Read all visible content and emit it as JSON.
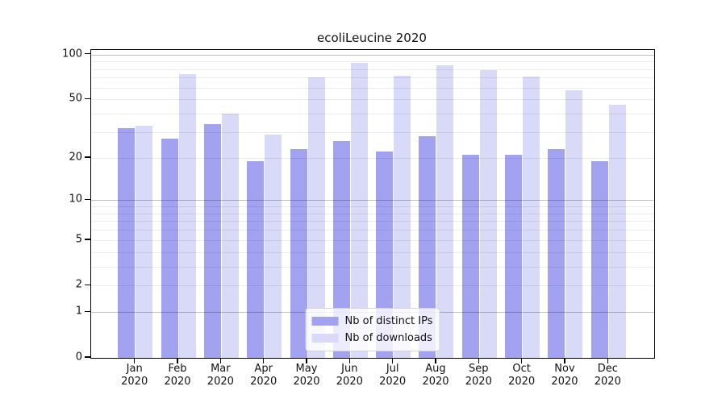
{
  "chart_data": {
    "type": "bar",
    "title": "ecoliLeucine 2020",
    "categories": [
      "Jan",
      "Feb",
      "Mar",
      "Apr",
      "May",
      "Jun",
      "Jul",
      "Aug",
      "Sep",
      "Oct",
      "Nov",
      "Dec"
    ],
    "year": "2020",
    "series": [
      {
        "name": "Nb of distinct IPs",
        "color": "#a2a2f0",
        "values": [
          32,
          27,
          34,
          19,
          23,
          26,
          22,
          28,
          21,
          21,
          23,
          19
        ]
      },
      {
        "name": "Nb of downloads",
        "color": "#d9d9f8",
        "values": [
          33,
          74,
          40,
          29,
          70,
          88,
          72,
          85,
          79,
          71,
          58,
          46
        ]
      }
    ],
    "xlabel": "",
    "ylabel": "",
    "yscale": "log1p",
    "ylim": [
      0,
      107
    ],
    "y_tick_labels": [
      0,
      1,
      2,
      5,
      10,
      20,
      50,
      100
    ],
    "y_major_gridlines": [
      1,
      10,
      100
    ],
    "y_minor_gridlines": [
      2,
      3,
      4,
      5,
      6,
      7,
      8,
      9,
      20,
      30,
      40,
      50,
      60,
      70,
      80,
      90
    ],
    "grid": true,
    "legend_position": "lower center"
  },
  "colors": {
    "background": "#ffffff",
    "bar_distinct_ips": "#a2a2f0",
    "bar_downloads": "#d9d9f8",
    "spine": "#000000",
    "grid_major": "rgba(0,0,0,0.25)",
    "grid_minor": "rgba(0,0,0,0.075)",
    "text": "#111111",
    "legend_border": "#d4d4d4",
    "legend_background": "rgba(255,255,255,0.8)"
  }
}
